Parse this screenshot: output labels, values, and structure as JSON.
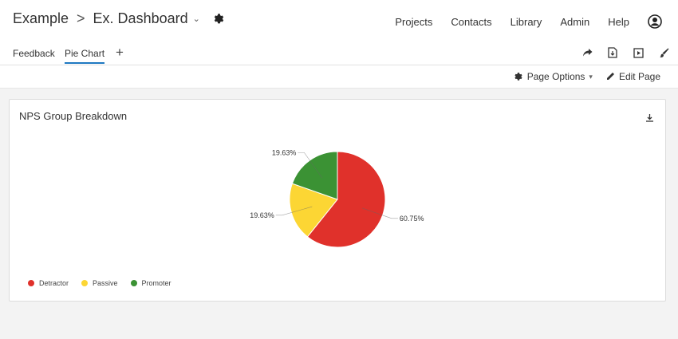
{
  "header": {
    "project": "Example",
    "separator": ">",
    "dashboard": "Ex. Dashboard",
    "nav": [
      "Projects",
      "Contacts",
      "Library",
      "Admin",
      "Help"
    ]
  },
  "tabs": [
    {
      "label": "Feedback",
      "active": false
    },
    {
      "label": "Pie Chart",
      "active": true
    }
  ],
  "add_tab": "+",
  "toolbar_icons": [
    "share-icon",
    "export-icon",
    "present-icon",
    "paint-brush-icon"
  ],
  "page_options": {
    "label": "Page Options",
    "edit_label": "Edit Page"
  },
  "widget": {
    "title": "NPS Group Breakdown"
  },
  "colors": {
    "accent": "#1f78c1",
    "detractor": "#e0312b",
    "passive": "#fcd634",
    "promoter": "#3b9234"
  },
  "chart_data": {
    "type": "pie",
    "title": "NPS Group Breakdown",
    "categories": [
      "Detractor",
      "Passive",
      "Promoter"
    ],
    "values": [
      60.75,
      19.63,
      19.63
    ],
    "data_labels": [
      "60.75%",
      "19.63%",
      "19.63%"
    ],
    "colors": [
      "#e0312b",
      "#fcd634",
      "#3b9234"
    ],
    "legend_position": "bottom-left"
  }
}
